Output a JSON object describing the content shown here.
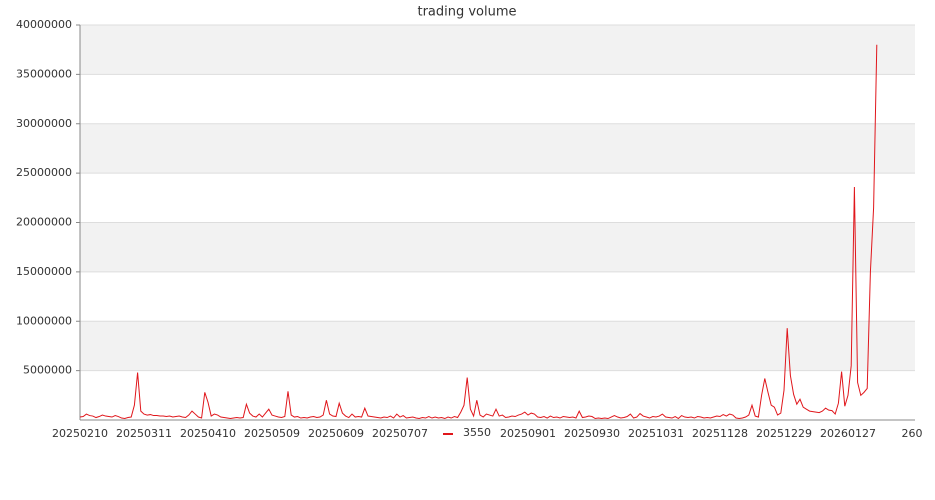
{
  "chart_data": {
    "type": "line",
    "title": "trading volume",
    "categories": [
      "20250210",
      null,
      null,
      null,
      null,
      null,
      null,
      null,
      null,
      null,
      null,
      null,
      null,
      null,
      null,
      null,
      null,
      null,
      null,
      null,
      "20250311",
      null,
      null,
      null,
      null,
      null,
      null,
      null,
      null,
      null,
      null,
      null,
      null,
      null,
      null,
      null,
      null,
      null,
      null,
      null,
      "20250410",
      null,
      null,
      null,
      null,
      null,
      null,
      null,
      null,
      null,
      null,
      null,
      null,
      null,
      null,
      null,
      null,
      null,
      null,
      null,
      "20250509",
      null,
      null,
      null,
      null,
      null,
      null,
      null,
      null,
      null,
      null,
      null,
      null,
      null,
      null,
      null,
      null,
      null,
      null,
      null,
      "20250609",
      null,
      null,
      null,
      null,
      null,
      null,
      null,
      null,
      null,
      null,
      null,
      null,
      null,
      null,
      null,
      null,
      null,
      null,
      null,
      "20250707",
      null,
      null,
      null,
      null,
      null,
      null,
      null,
      null,
      null,
      null,
      null,
      null,
      null,
      null,
      null,
      null,
      null,
      null,
      null,
      null,
      null,
      null,
      null,
      null,
      null,
      null,
      null,
      null,
      null,
      null,
      null,
      null,
      null,
      null,
      null,
      null,
      null,
      null,
      null,
      "20250901",
      null,
      null,
      null,
      null,
      null,
      null,
      null,
      null,
      null,
      null,
      null,
      null,
      null,
      null,
      null,
      null,
      null,
      null,
      null,
      "20250930",
      null,
      null,
      null,
      null,
      null,
      null,
      null,
      null,
      null,
      null,
      null,
      null,
      null,
      null,
      null,
      null,
      null,
      null,
      null,
      "20251031",
      null,
      null,
      null,
      null,
      null,
      null,
      null,
      null,
      null,
      null,
      null,
      null,
      null,
      null,
      null,
      null,
      null,
      null,
      null,
      "20251128",
      null,
      null,
      null,
      null,
      null,
      null,
      null,
      null,
      null,
      null,
      null,
      null,
      null,
      null,
      null,
      null,
      null,
      null,
      null,
      "20251229",
      null,
      null,
      null,
      null,
      null,
      null,
      null,
      null,
      null,
      null,
      null,
      null,
      null,
      null,
      null,
      null,
      null,
      null,
      null,
      "20260127",
      null,
      null,
      null,
      null,
      null,
      null,
      null,
      null,
      null,
      null,
      null,
      null,
      null,
      null,
      null,
      null,
      null,
      null,
      null,
      "260"
    ],
    "series": [
      {
        "name": "3550",
        "color": "#e0161b",
        "values": [
          300000,
          350000,
          600000,
          450000,
          400000,
          250000,
          350000,
          500000,
          400000,
          350000,
          300000,
          450000,
          350000,
          200000,
          150000,
          250000,
          300000,
          1500000,
          4800000,
          900000,
          600000,
          500000,
          550000,
          450000,
          450000,
          400000,
          400000,
          350000,
          400000,
          300000,
          350000,
          400000,
          300000,
          250000,
          500000,
          900000,
          600000,
          300000,
          200000,
          2800000,
          1800000,
          400000,
          600000,
          500000,
          300000,
          250000,
          200000,
          150000,
          200000,
          250000,
          200000,
          250000,
          1600000,
          700000,
          400000,
          300000,
          600000,
          300000,
          700000,
          1100000,
          500000,
          400000,
          300000,
          250000,
          350000,
          2900000,
          500000,
          300000,
          350000,
          200000,
          250000,
          200000,
          300000,
          350000,
          250000,
          300000,
          500000,
          2000000,
          600000,
          400000,
          350000,
          1700000,
          700000,
          400000,
          250000,
          600000,
          300000,
          350000,
          300000,
          1200000,
          400000,
          350000,
          300000,
          250000,
          200000,
          300000,
          250000,
          400000,
          200000,
          600000,
          300000,
          450000,
          200000,
          250000,
          300000,
          200000,
          150000,
          250000,
          200000,
          350000,
          200000,
          300000,
          200000,
          250000,
          150000,
          300000,
          200000,
          350000,
          250000,
          800000,
          1500000,
          4300000,
          1100000,
          400000,
          2000000,
          500000,
          300000,
          600000,
          500000,
          400000,
          1100000,
          400000,
          500000,
          250000,
          300000,
          400000,
          350000,
          500000,
          600000,
          800000,
          500000,
          700000,
          600000,
          300000,
          250000,
          350000,
          200000,
          400000,
          250000,
          300000,
          200000,
          350000,
          300000,
          250000,
          300000,
          200000,
          900000,
          250000,
          300000,
          400000,
          350000,
          150000,
          200000,
          150000,
          200000,
          150000,
          300000,
          450000,
          300000,
          200000,
          250000,
          350000,
          600000,
          200000,
          300000,
          650000,
          400000,
          300000,
          200000,
          350000,
          300000,
          400000,
          600000,
          300000,
          250000,
          200000,
          350000,
          150000,
          450000,
          300000,
          250000,
          300000,
          200000,
          350000,
          300000,
          200000,
          250000,
          200000,
          300000,
          400000,
          350000,
          550000,
          400000,
          600000,
          500000,
          200000,
          150000,
          200000,
          300000,
          500000,
          1500000,
          400000,
          300000,
          2500000,
          4200000,
          2800000,
          1500000,
          1300000,
          500000,
          700000,
          3000000,
          9300000,
          4500000,
          2600000,
          1600000,
          2100000,
          1300000,
          1100000,
          900000,
          850000,
          800000,
          750000,
          900000,
          1200000,
          1000000,
          950000,
          600000,
          1700000,
          4900000,
          1400000,
          2500000,
          5500000,
          23600000,
          3800000,
          2500000,
          2800000,
          3200000,
          15000000,
          21500000,
          38000000,
          null,
          null,
          null,
          null,
          null,
          null,
          null,
          null,
          null,
          null,
          null
        ]
      }
    ],
    "ylim": [
      0,
      40000000
    ],
    "yticks": [
      5000000,
      10000000,
      15000000,
      20000000,
      25000000,
      30000000,
      35000000,
      40000000
    ],
    "grid": true,
    "bands": true,
    "legend": "bottom"
  }
}
